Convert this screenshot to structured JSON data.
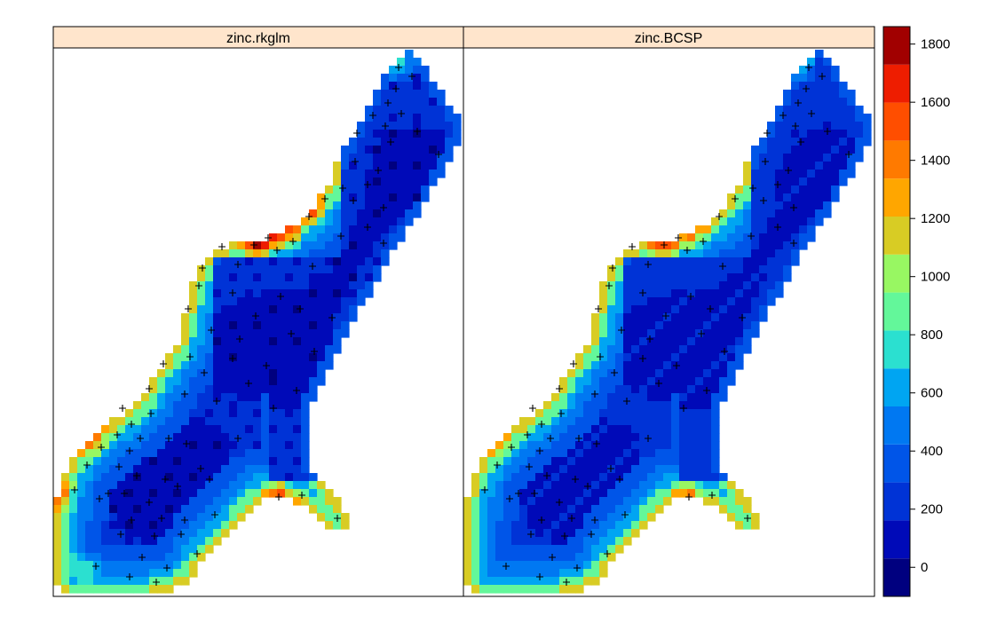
{
  "chart_data": {
    "type": "heatmap",
    "title": "",
    "panels": [
      {
        "name": "zinc.rkglm"
      },
      {
        "name": "zinc.BCSP"
      }
    ],
    "colorbar": {
      "ticks": [
        0,
        200,
        400,
        600,
        800,
        1000,
        1200,
        1400,
        1600,
        1800
      ],
      "tick_labels": [
        "0",
        "200",
        "400",
        "600",
        "800",
        "1000",
        "1200",
        "1400",
        "1600",
        "1800"
      ],
      "range": [
        -100,
        1860
      ],
      "colors": [
        "#00007f",
        "#000ab8",
        "#0033d6",
        "#0055e8",
        "#0078f2",
        "#00a5f2",
        "#2be0d0",
        "#63f79a",
        "#98f762",
        "#d8cc24",
        "#ffa600",
        "#ff7a00",
        "#ff4e00",
        "#ee1d00",
        "#a10000"
      ]
    },
    "xlabel": "",
    "ylabel": ""
  }
}
